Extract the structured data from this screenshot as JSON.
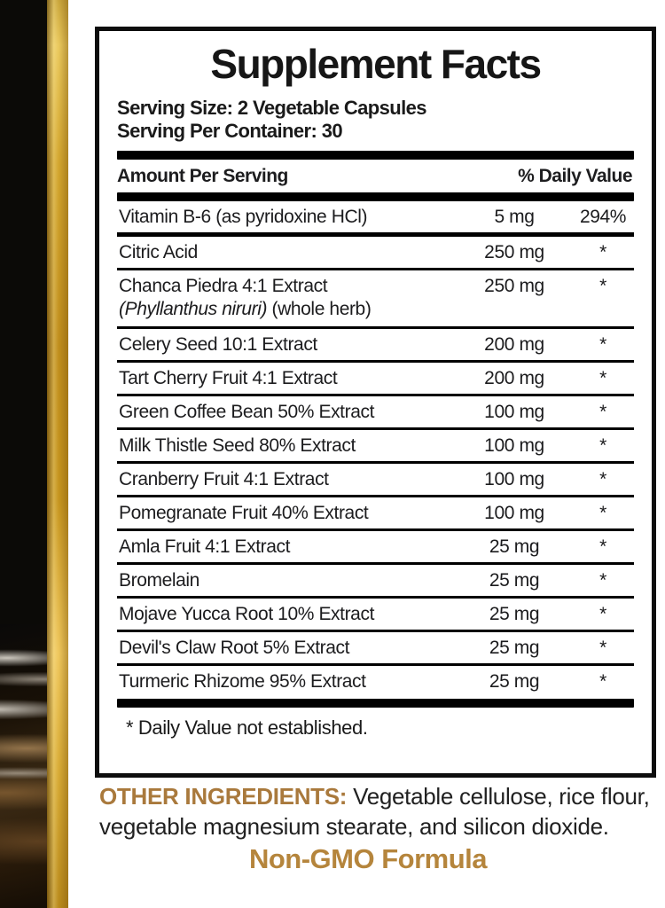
{
  "label": {
    "title": "Supplement Facts",
    "serving_size": "Serving Size: 2 Vegetable Capsules",
    "serving_per_container": "Serving Per Container: 30",
    "columns": {
      "amount": "Amount Per Serving",
      "dv": "% Daily Value"
    },
    "rows": [
      {
        "name": "Vitamin B-6 (as pyridoxine HCl)",
        "amount": "5 mg",
        "dv": "294%"
      },
      {
        "name": "Citric Acid",
        "amount": "250 mg",
        "dv": "*"
      },
      {
        "name": "Chanca Piedra 4:1 Extract",
        "sub_italic": "(Phyllanthus niruri)",
        "sub_plain": " (whole herb)",
        "amount": "250 mg",
        "dv": "*"
      },
      {
        "name": "Celery Seed 10:1 Extract",
        "amount": "200 mg",
        "dv": "*"
      },
      {
        "name": "Tart Cherry Fruit 4:1 Extract",
        "amount": "200 mg",
        "dv": "*"
      },
      {
        "name": "Green Coffee Bean 50% Extract",
        "amount": "100 mg",
        "dv": "*"
      },
      {
        "name": "Milk Thistle Seed 80% Extract",
        "amount": "100 mg",
        "dv": "*"
      },
      {
        "name": "Cranberry Fruit 4:1 Extract",
        "amount": "100 mg",
        "dv": "*"
      },
      {
        "name": "Pomegranate Fruit 40% Extract",
        "amount": "100 mg",
        "dv": "*"
      },
      {
        "name": "Amla Fruit 4:1 Extract",
        "amount": "25 mg",
        "dv": "*"
      },
      {
        "name": "Bromelain",
        "amount": "25 mg",
        "dv": "*"
      },
      {
        "name": "Mojave Yucca Root 10% Extract",
        "amount": "25 mg",
        "dv": "*"
      },
      {
        "name": "Devil's Claw Root 5% Extract",
        "amount": "25 mg",
        "dv": "*"
      },
      {
        "name": "Turmeric Rhizome 95% Extract",
        "amount": "25 mg",
        "dv": "*"
      }
    ],
    "footnote": "* Daily Value not established."
  },
  "other_ingredients": {
    "label": "OTHER INGREDIENTS:",
    "text": " Vegetable cellulose, rice flour, vegetable magnesium stearate, and silicon dioxide."
  },
  "non_gmo": "Non-GMO Formula",
  "colors": {
    "accent_text_gold": "#A9793C",
    "nongmo_text_gold": "#B5853C",
    "gold_bar_light": "#EFC75D",
    "gold_bar_dark": "#C08E1D",
    "panel_border_black": "#0d0d0d",
    "body_text": "#1d1d1f"
  }
}
